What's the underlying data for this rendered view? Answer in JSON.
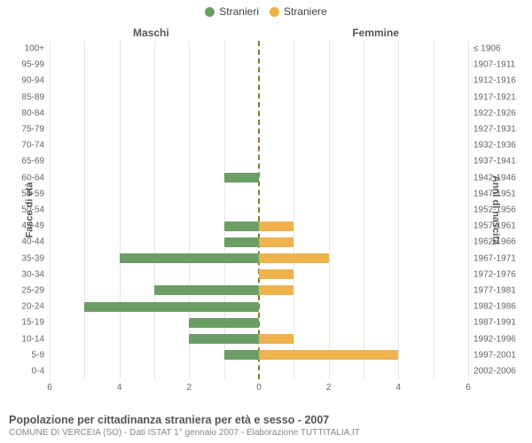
{
  "legend": {
    "male": {
      "label": "Stranieri",
      "color": "#6b9e64"
    },
    "female": {
      "label": "Straniere",
      "color": "#f0b24a"
    }
  },
  "headers": {
    "left": "Maschi",
    "right": "Femmine",
    "yaxis_left": "Fasce di età",
    "yaxis_right": "Anni di nascita"
  },
  "chart": {
    "type": "population-pyramid",
    "x_max": 6,
    "x_ticks": [
      6,
      4,
      2,
      0,
      2,
      4,
      6
    ],
    "grid_color": "#e6e6e6",
    "center_line_color": "#8a7a2a",
    "bar_color_male": "#6b9e64",
    "bar_color_female": "#f0b24a",
    "background_color": "#ffffff",
    "label_fontsize": 10,
    "rows": [
      {
        "age": "100+",
        "birth": "≤ 1906",
        "m": 0,
        "f": 0
      },
      {
        "age": "95-99",
        "birth": "1907-1911",
        "m": 0,
        "f": 0
      },
      {
        "age": "90-94",
        "birth": "1912-1916",
        "m": 0,
        "f": 0
      },
      {
        "age": "85-89",
        "birth": "1917-1921",
        "m": 0,
        "f": 0
      },
      {
        "age": "80-84",
        "birth": "1922-1926",
        "m": 0,
        "f": 0
      },
      {
        "age": "75-79",
        "birth": "1927-1931",
        "m": 0,
        "f": 0
      },
      {
        "age": "70-74",
        "birth": "1932-1936",
        "m": 0,
        "f": 0
      },
      {
        "age": "65-69",
        "birth": "1937-1941",
        "m": 0,
        "f": 0
      },
      {
        "age": "60-64",
        "birth": "1942-1946",
        "m": 1,
        "f": 0
      },
      {
        "age": "55-59",
        "birth": "1947-1951",
        "m": 0,
        "f": 0
      },
      {
        "age": "50-54",
        "birth": "1952-1956",
        "m": 0,
        "f": 0
      },
      {
        "age": "45-49",
        "birth": "1957-1961",
        "m": 1,
        "f": 1
      },
      {
        "age": "40-44",
        "birth": "1962-1966",
        "m": 1,
        "f": 1
      },
      {
        "age": "35-39",
        "birth": "1967-1971",
        "m": 4,
        "f": 2
      },
      {
        "age": "30-34",
        "birth": "1972-1976",
        "m": 0,
        "f": 1
      },
      {
        "age": "25-29",
        "birth": "1977-1981",
        "m": 3,
        "f": 1
      },
      {
        "age": "20-24",
        "birth": "1982-1986",
        "m": 5,
        "f": 0
      },
      {
        "age": "15-19",
        "birth": "1987-1991",
        "m": 2,
        "f": 0
      },
      {
        "age": "10-14",
        "birth": "1992-1996",
        "m": 2,
        "f": 1
      },
      {
        "age": "5-9",
        "birth": "1997-2001",
        "m": 1,
        "f": 4
      },
      {
        "age": "0-4",
        "birth": "2002-2006",
        "m": 0,
        "f": 0
      }
    ]
  },
  "footer": {
    "title": "Popolazione per cittadinanza straniera per età e sesso - 2007",
    "subtitle": "COMUNE DI VERCEIA (SO) - Dati ISTAT 1° gennaio 2007 - Elaborazione TUTTITALIA.IT"
  }
}
